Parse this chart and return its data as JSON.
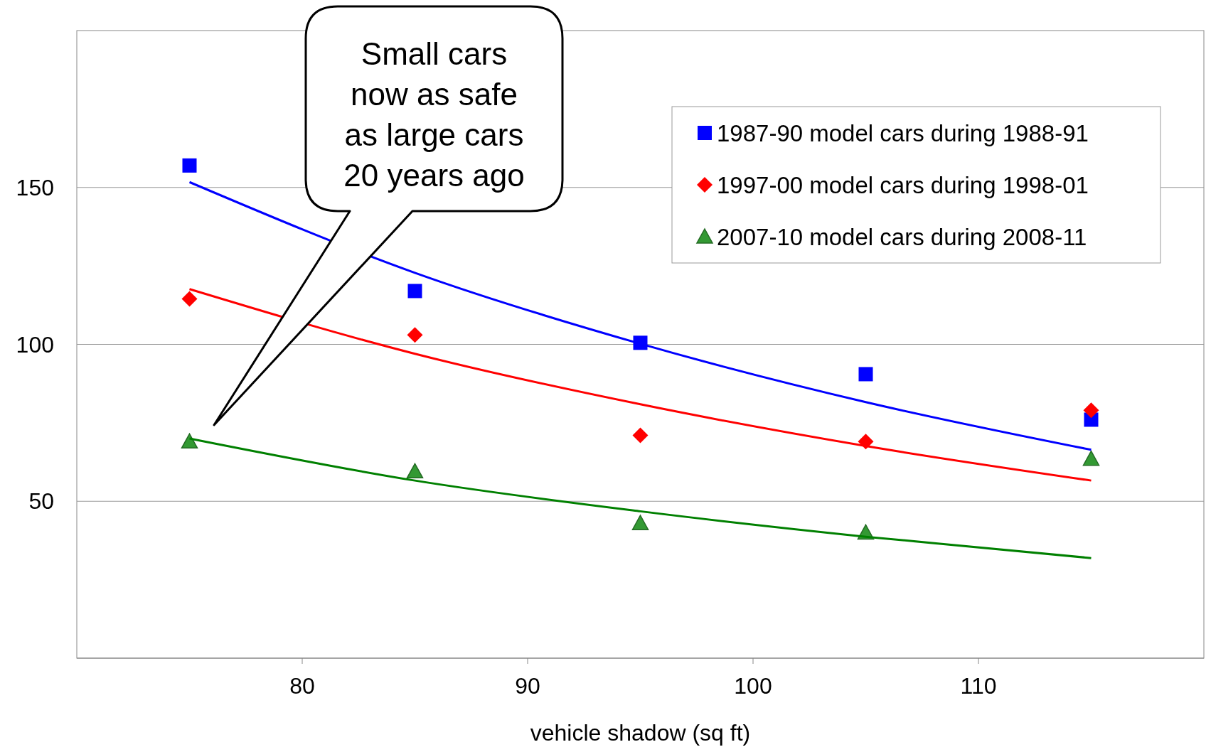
{
  "chart_data": {
    "type": "scatter",
    "xlabel": "vehicle shadow (sq ft)",
    "xlim": [
      70,
      120
    ],
    "xticks": [
      80,
      90,
      100,
      110
    ],
    "ylim": [
      0,
      200
    ],
    "yticks": [
      50,
      100,
      150
    ],
    "grid": "y",
    "legend": "top right",
    "annotations": [
      "Small cars\nnow as safe\nas large cars\n20 years ago"
    ],
    "series": [
      {
        "name": "1987-90 model cars during 1988-91",
        "marker": "square",
        "color": "#0000ff",
        "x": [
          75,
          85,
          95,
          105,
          115
        ],
        "values": [
          157,
          117,
          100.5,
          90.5,
          76
        ]
      },
      {
        "name": "1997-00 model cars during 1998-01",
        "marker": "diamond",
        "color": "#ff0000",
        "x": [
          75,
          85,
          95,
          105,
          115
        ],
        "values": [
          114.5,
          103,
          71,
          69,
          79
        ]
      },
      {
        "name": "2007-10 model cars during 2008-11",
        "marker": "triangle",
        "color": "#339933",
        "x": [
          75,
          85,
          95,
          105,
          115
        ],
        "values": [
          69,
          59.5,
          43,
          40,
          63.5
        ]
      },
      {
        "type": "line",
        "marker": "none",
        "color": "#0000ff",
        "x": [
          75,
          85,
          95,
          105,
          115
        ],
        "values": [
          151.7,
          122.8,
          100.2,
          81.6,
          66.4
        ]
      },
      {
        "type": "line",
        "marker": "none",
        "color": "#ff0000",
        "x": [
          75,
          85,
          95,
          105,
          115
        ],
        "values": [
          117.6,
          97,
          80.9,
          67.6,
          56.6
        ]
      },
      {
        "type": "line",
        "marker": "none",
        "color": "#008000",
        "x": [
          75,
          85,
          95,
          105,
          115
        ],
        "values": [
          70,
          56.6,
          46.8,
          38.7,
          31.9
        ]
      }
    ]
  }
}
